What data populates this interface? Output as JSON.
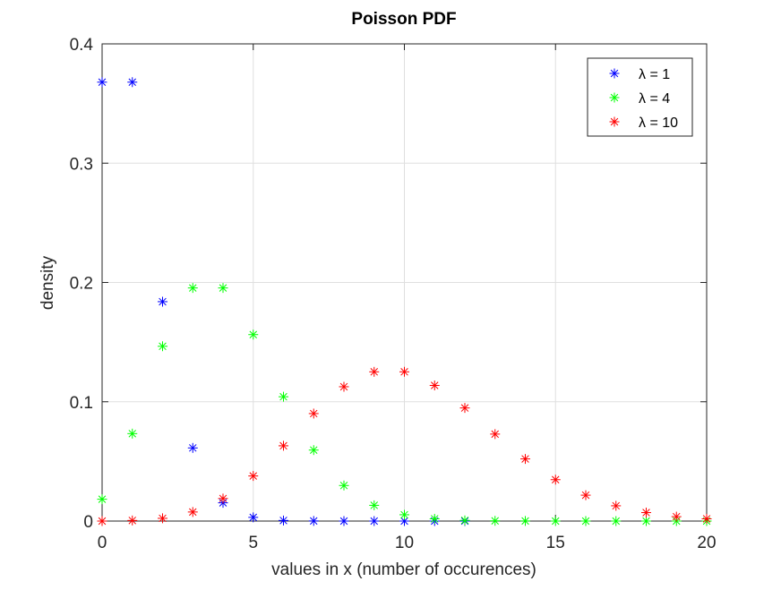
{
  "chart_data": {
    "type": "scatter",
    "title": "Poisson PDF",
    "xlabel": "values in x (number of occurences)",
    "ylabel": "density",
    "xlim": [
      0,
      20
    ],
    "ylim": [
      0,
      0.4
    ],
    "xticks": [
      "0",
      "5",
      "10",
      "15",
      "20"
    ],
    "yticks": [
      "0",
      "0.1",
      "0.2",
      "0.3",
      "0.4"
    ],
    "xtick_values": [
      0,
      5,
      10,
      15,
      20
    ],
    "ytick_values": [
      0,
      0.1,
      0.2,
      0.3,
      0.4
    ],
    "grid": true,
    "legend_position": "top-right",
    "marker": "*",
    "series": [
      {
        "name": "λ = 1",
        "color": "#0000ff",
        "x": [
          0,
          1,
          2,
          3,
          4,
          5,
          6,
          7,
          8,
          9,
          10,
          11,
          12
        ],
        "y": [
          0.3679,
          0.3679,
          0.1839,
          0.0613,
          0.0153,
          0.0031,
          0.0005,
          0.0001,
          0.0,
          0.0,
          0.0,
          0.0,
          0.0
        ]
      },
      {
        "name": "λ = 4",
        "color": "#00ff00",
        "x": [
          0,
          1,
          2,
          3,
          4,
          5,
          6,
          7,
          8,
          9,
          10,
          11,
          12,
          13,
          14,
          15,
          16,
          17,
          18,
          19,
          20
        ],
        "y": [
          0.0183,
          0.0733,
          0.1465,
          0.1954,
          0.1954,
          0.1563,
          0.1042,
          0.0595,
          0.0298,
          0.0132,
          0.0053,
          0.0019,
          0.0006,
          0.0002,
          0.0001,
          0.0,
          0.0,
          0.0,
          0.0,
          0.0,
          0.0
        ]
      },
      {
        "name": "λ = 10",
        "color": "#ff0000",
        "x": [
          0,
          1,
          2,
          3,
          4,
          5,
          6,
          7,
          8,
          9,
          10,
          11,
          12,
          13,
          14,
          15,
          16,
          17,
          18,
          19,
          20
        ],
        "y": [
          0.0,
          0.0005,
          0.0023,
          0.0076,
          0.0189,
          0.0378,
          0.0631,
          0.0901,
          0.1126,
          0.1251,
          0.1251,
          0.1137,
          0.0948,
          0.0729,
          0.0521,
          0.0347,
          0.0217,
          0.0128,
          0.0071,
          0.0037,
          0.0019
        ]
      }
    ]
  }
}
